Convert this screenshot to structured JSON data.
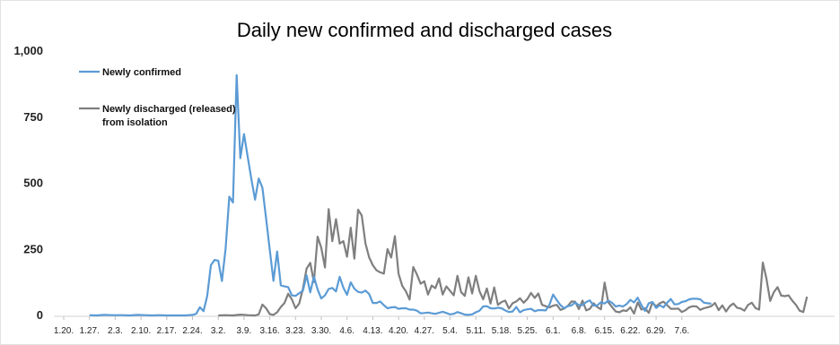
{
  "chart_data": {
    "type": "line",
    "title": "Daily new confirmed and discharged cases",
    "xlabel": "",
    "ylabel": "",
    "ylim": [
      0,
      1000
    ],
    "y_ticks": [
      "1,000",
      "750",
      "500",
      "250",
      "0"
    ],
    "y_tick_values": [
      1000,
      750,
      500,
      250,
      0
    ],
    "categories": [
      "1.20.",
      "1.27.",
      "2.3.",
      "2.10.",
      "2.17.",
      "2.24.",
      "3.2.",
      "3.9.",
      "3.16.",
      "3.23.",
      "3.30.",
      "4.6.",
      "4.13.",
      "4.20.",
      "4.27.",
      "5.4.",
      "5.11.",
      "5.18.",
      "5.25.",
      "6.1.",
      "6.8.",
      "6.15.",
      "6.22.",
      "6.29.",
      "7.6."
    ],
    "legend_position": "top-left",
    "grid": false,
    "series": [
      {
        "name": "Newly confirmed",
        "color": "#5b9bd5",
        "points": [
          [
            7,
            1
          ],
          [
            9,
            0
          ],
          [
            11,
            2
          ],
          [
            13,
            1
          ],
          [
            16,
            1
          ],
          [
            18,
            0
          ],
          [
            20,
            2
          ],
          [
            22,
            1
          ],
          [
            24,
            0
          ],
          [
            26,
            1
          ],
          [
            28,
            0
          ],
          [
            29,
            0
          ],
          [
            31,
            0
          ],
          [
            33,
            0
          ],
          [
            34,
            1
          ],
          [
            35,
            2
          ],
          [
            36,
            6
          ],
          [
            37,
            31
          ],
          [
            38,
            16
          ],
          [
            39,
            74
          ],
          [
            40,
            190
          ],
          [
            41,
            210
          ],
          [
            42,
            207
          ],
          [
            43,
            130
          ],
          [
            44,
            253
          ],
          [
            45,
            449
          ],
          [
            46,
            427
          ],
          [
            47,
            909
          ],
          [
            48,
            595
          ],
          [
            49,
            686
          ],
          [
            50,
            600
          ],
          [
            51,
            516
          ],
          [
            52,
            438
          ],
          [
            53,
            518
          ],
          [
            54,
            483
          ],
          [
            55,
            367
          ],
          [
            56,
            248
          ],
          [
            57,
            131
          ],
          [
            58,
            242
          ],
          [
            59,
            114
          ],
          [
            60,
            110
          ],
          [
            61,
            107
          ],
          [
            62,
            76
          ],
          [
            63,
            74
          ],
          [
            64,
            84
          ],
          [
            65,
            93
          ],
          [
            66,
            152
          ],
          [
            67,
            87
          ],
          [
            68,
            147
          ],
          [
            69,
            98
          ],
          [
            70,
            64
          ],
          [
            71,
            76
          ],
          [
            72,
            100
          ],
          [
            73,
            104
          ],
          [
            74,
            91
          ],
          [
            75,
            146
          ],
          [
            76,
            105
          ],
          [
            77,
            78
          ],
          [
            78,
            125
          ],
          [
            79,
            101
          ],
          [
            80,
            89
          ],
          [
            81,
            86
          ],
          [
            82,
            94
          ],
          [
            83,
            81
          ],
          [
            84,
            47
          ],
          [
            85,
            47
          ],
          [
            86,
            53
          ],
          [
            87,
            39
          ],
          [
            88,
            27
          ],
          [
            89,
            30
          ],
          [
            90,
            32
          ],
          [
            91,
            25
          ],
          [
            92,
            27
          ],
          [
            93,
            27
          ],
          [
            94,
            22
          ],
          [
            95,
            22
          ],
          [
            96,
            18
          ],
          [
            97,
            8
          ],
          [
            98,
            9
          ],
          [
            99,
            11
          ],
          [
            100,
            8
          ],
          [
            101,
            6
          ],
          [
            102,
            10
          ],
          [
            103,
            14
          ],
          [
            104,
            9
          ],
          [
            105,
            4
          ],
          [
            106,
            6
          ],
          [
            107,
            13
          ],
          [
            108,
            8
          ],
          [
            109,
            3
          ],
          [
            110,
            2
          ],
          [
            111,
            4
          ],
          [
            112,
            12
          ],
          [
            113,
            18
          ],
          [
            114,
            34
          ],
          [
            115,
            35
          ],
          [
            116,
            27
          ],
          [
            117,
            26
          ],
          [
            118,
            29
          ],
          [
            119,
            27
          ],
          [
            120,
            19
          ],
          [
            121,
            13
          ],
          [
            122,
            15
          ],
          [
            123,
            32
          ],
          [
            124,
            12
          ],
          [
            125,
            20
          ],
          [
            126,
            23
          ],
          [
            127,
            25
          ],
          [
            128,
            16
          ],
          [
            129,
            20
          ],
          [
            130,
            20
          ],
          [
            131,
            19
          ],
          [
            132,
            40
          ],
          [
            133,
            79
          ],
          [
            134,
            58
          ],
          [
            135,
            39
          ],
          [
            136,
            27
          ],
          [
            137,
            35
          ],
          [
            138,
            38
          ],
          [
            139,
            49
          ],
          [
            140,
            39
          ],
          [
            141,
            39
          ],
          [
            142,
            51
          ],
          [
            143,
            57
          ],
          [
            144,
            37
          ],
          [
            145,
            38
          ],
          [
            146,
            50
          ],
          [
            147,
            45
          ],
          [
            148,
            56
          ],
          [
            149,
            48
          ],
          [
            150,
            34
          ],
          [
            151,
            37
          ],
          [
            152,
            34
          ],
          [
            153,
            43
          ],
          [
            154,
            59
          ],
          [
            155,
            49
          ],
          [
            156,
            67
          ],
          [
            157,
            39
          ],
          [
            158,
            17
          ],
          [
            159,
            46
          ],
          [
            160,
            51
          ],
          [
            161,
            28
          ],
          [
            162,
            39
          ],
          [
            163,
            30
          ],
          [
            164,
            48
          ],
          [
            165,
            62
          ],
          [
            166,
            42
          ],
          [
            167,
            43
          ],
          [
            168,
            51
          ],
          [
            169,
            54
          ],
          [
            170,
            61
          ],
          [
            171,
            63
          ],
          [
            172,
            63
          ],
          [
            173,
            61
          ],
          [
            174,
            48
          ],
          [
            175,
            46
          ],
          [
            176,
            44
          ]
        ]
      },
      {
        "name": "Newly discharged (released) from isolation",
        "color": "#7f7f7f",
        "points": [
          [
            42,
            0
          ],
          [
            44,
            1
          ],
          [
            46,
            0
          ],
          [
            48,
            3
          ],
          [
            50,
            1
          ],
          [
            52,
            0
          ],
          [
            53,
            4
          ],
          [
            54,
            41
          ],
          [
            55,
            27
          ],
          [
            56,
            5
          ],
          [
            57,
            2
          ],
          [
            58,
            12
          ],
          [
            59,
            32
          ],
          [
            60,
            47
          ],
          [
            61,
            82
          ],
          [
            62,
            61
          ],
          [
            63,
            27
          ],
          [
            64,
            45
          ],
          [
            65,
            100
          ],
          [
            66,
            177
          ],
          [
            67,
            199
          ],
          [
            68,
            126
          ],
          [
            69,
            298
          ],
          [
            70,
            256
          ],
          [
            71,
            181
          ],
          [
            72,
            402
          ],
          [
            73,
            281
          ],
          [
            74,
            364
          ],
          [
            75,
            272
          ],
          [
            76,
            281
          ],
          [
            77,
            222
          ],
          [
            78,
            332
          ],
          [
            79,
            215
          ],
          [
            80,
            400
          ],
          [
            81,
            378
          ],
          [
            82,
            273
          ],
          [
            83,
            220
          ],
          [
            84,
            190
          ],
          [
            85,
            171
          ],
          [
            86,
            163
          ],
          [
            87,
            158
          ],
          [
            88,
            251
          ],
          [
            89,
            219
          ],
          [
            90,
            300
          ],
          [
            91,
            158
          ],
          [
            92,
            112
          ],
          [
            93,
            91
          ],
          [
            94,
            60
          ],
          [
            95,
            183
          ],
          [
            96,
            155
          ],
          [
            97,
            120
          ],
          [
            98,
            129
          ],
          [
            99,
            79
          ],
          [
            100,
            113
          ],
          [
            101,
            103
          ],
          [
            102,
            140
          ],
          [
            103,
            79
          ],
          [
            104,
            110
          ],
          [
            105,
            93
          ],
          [
            106,
            76
          ],
          [
            107,
            150
          ],
          [
            108,
            88
          ],
          [
            109,
            74
          ],
          [
            110,
            144
          ],
          [
            111,
            83
          ],
          [
            112,
            150
          ],
          [
            113,
            92
          ],
          [
            114,
            61
          ],
          [
            115,
            102
          ],
          [
            116,
            45
          ],
          [
            117,
            106
          ],
          [
            118,
            40
          ],
          [
            119,
            51
          ],
          [
            120,
            56
          ],
          [
            121,
            26
          ],
          [
            122,
            46
          ],
          [
            123,
            53
          ],
          [
            124,
            65
          ],
          [
            125,
            48
          ],
          [
            126,
            62
          ],
          [
            127,
            85
          ],
          [
            128,
            66
          ],
          [
            129,
            83
          ],
          [
            130,
            40
          ],
          [
            131,
            35
          ],
          [
            132,
            30
          ],
          [
            133,
            37
          ],
          [
            134,
            40
          ],
          [
            135,
            21
          ],
          [
            136,
            26
          ],
          [
            137,
            36
          ],
          [
            138,
            53
          ],
          [
            139,
            52
          ],
          [
            140,
            24
          ],
          [
            141,
            56
          ],
          [
            142,
            19
          ],
          [
            143,
            25
          ],
          [
            144,
            46
          ],
          [
            145,
            32
          ],
          [
            146,
            23
          ],
          [
            147,
            124
          ],
          [
            148,
            50
          ],
          [
            149,
            32
          ],
          [
            150,
            15
          ],
          [
            151,
            12
          ],
          [
            152,
            19
          ],
          [
            153,
            17
          ],
          [
            154,
            31
          ],
          [
            155,
            7
          ],
          [
            156,
            49
          ],
          [
            157,
            22
          ],
          [
            158,
            27
          ],
          [
            159,
            10
          ],
          [
            160,
            49
          ],
          [
            161,
            34
          ],
          [
            162,
            46
          ],
          [
            163,
            52
          ],
          [
            164,
            39
          ],
          [
            165,
            25
          ],
          [
            166,
            25
          ],
          [
            167,
            26
          ],
          [
            168,
            13
          ],
          [
            169,
            20
          ],
          [
            170,
            31
          ],
          [
            171,
            35
          ],
          [
            172,
            34
          ],
          [
            173,
            21
          ],
          [
            174,
            27
          ],
          [
            175,
            31
          ],
          [
            176,
            35
          ],
          [
            177,
            47
          ],
          [
            178,
            20
          ],
          [
            179,
            38
          ],
          [
            180,
            15
          ],
          [
            181,
            35
          ],
          [
            182,
            45
          ],
          [
            183,
            29
          ],
          [
            184,
            26
          ],
          [
            185,
            18
          ],
          [
            186,
            40
          ],
          [
            187,
            48
          ],
          [
            188,
            28
          ],
          [
            189,
            22
          ],
          [
            190,
            200
          ],
          [
            191,
            138
          ],
          [
            192,
            55
          ],
          [
            193,
            88
          ],
          [
            194,
            107
          ],
          [
            195,
            75
          ],
          [
            196,
            73
          ],
          [
            197,
            76
          ],
          [
            198,
            56
          ],
          [
            199,
            40
          ],
          [
            200,
            18
          ],
          [
            201,
            13
          ],
          [
            202,
            71
          ]
        ]
      }
    ]
  }
}
